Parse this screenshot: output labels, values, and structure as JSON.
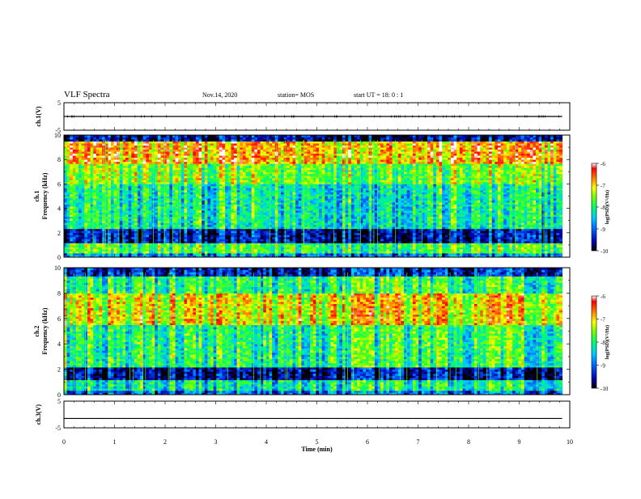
{
  "header": {
    "title": "VLF Spectra",
    "date": "Nov.14, 2020",
    "station": "station= MOS",
    "start": "start  UT =   18: 0  : 1"
  },
  "chart_data": [
    {
      "type": "line",
      "panel": "ch1-waveform",
      "ylabel": "ch.1(V)",
      "ylim": [
        -5,
        5
      ],
      "yticks": [
        "5",
        "-5"
      ],
      "xlim": [
        0,
        10
      ],
      "x": [
        0,
        9.85
      ],
      "values": [
        0,
        0
      ]
    },
    {
      "type": "heatmap",
      "panel": "ch1-spectrogram",
      "ylabel_top": "ch.1",
      "ylabel": "Frequency (kHz)",
      "ylim": [
        0,
        10
      ],
      "yticks": [
        "0",
        "2",
        "4",
        "6",
        "8",
        "10"
      ],
      "xlim": [
        0,
        9.85
      ],
      "colorbar": {
        "label": "log(PSD)(V²/Hz)",
        "range": [
          -10,
          -6
        ],
        "ticks": [
          "-6",
          "-7",
          "-8",
          "-9",
          "-10"
        ]
      }
    },
    {
      "type": "heatmap",
      "panel": "ch2-spectrogram",
      "ylabel_top": "ch.2",
      "ylabel": "Frequency (kHz)",
      "ylim": [
        0,
        10
      ],
      "yticks": [
        "0",
        "2",
        "4",
        "6",
        "8",
        "10"
      ],
      "xlim": [
        0,
        9.85
      ],
      "colorbar": {
        "label": "log(PSD)(V²/Hz)",
        "range": [
          -10,
          -6
        ],
        "ticks": [
          "-6",
          "-7",
          "-8",
          "-9",
          "-10"
        ]
      }
    },
    {
      "type": "line",
      "panel": "ch3-waveform",
      "ylabel": "ch.3(V)",
      "ylim": [
        -5,
        5
      ],
      "yticks": [
        "5",
        "-5"
      ],
      "xlim": [
        0,
        10
      ],
      "x": [
        0,
        9.85
      ],
      "values": [
        -1.5,
        -1.5
      ]
    }
  ],
  "xaxis": {
    "label": "Time (min)",
    "ticks": [
      "0",
      "1",
      "2",
      "3",
      "4",
      "5",
      "6",
      "7",
      "8",
      "9",
      "10"
    ],
    "range": [
      0,
      10
    ]
  }
}
